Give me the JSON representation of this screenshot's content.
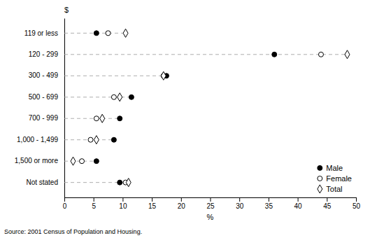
{
  "chart_data": {
    "type": "dot",
    "orientation": "horizontal",
    "categories": [
      "119 or less",
      "120 - 299",
      "300 - 499",
      "500 - 699",
      "700 - 999",
      "1,000 - 1,499",
      "1,500 or more",
      "Not stated"
    ],
    "series": [
      {
        "name": "Male",
        "color": "#000000",
        "marker": "circle",
        "values": [
          5.5,
          36.0,
          17.5,
          11.5,
          9.5,
          8.5,
          5.5,
          9.5
        ]
      },
      {
        "name": "Female",
        "color": "#000000",
        "marker": "circle-open",
        "values": [
          7.5,
          44.0,
          17.0,
          8.5,
          5.5,
          4.5,
          3.0,
          10.5
        ]
      },
      {
        "name": "Total",
        "color": "#000000",
        "marker": "diamond-open",
        "values": [
          10.5,
          48.5,
          17.0,
          9.5,
          6.5,
          5.5,
          1.5,
          11.0
        ]
      }
    ],
    "xlim": [
      0,
      50
    ],
    "xticks": [
      0,
      5,
      10,
      15,
      20,
      25,
      30,
      35,
      40,
      45,
      50
    ],
    "xlabel": "%",
    "annotations": [
      "$",
      "Source: 2001 Census of Population and Housing."
    ],
    "grid": false,
    "legend": "lower right"
  }
}
